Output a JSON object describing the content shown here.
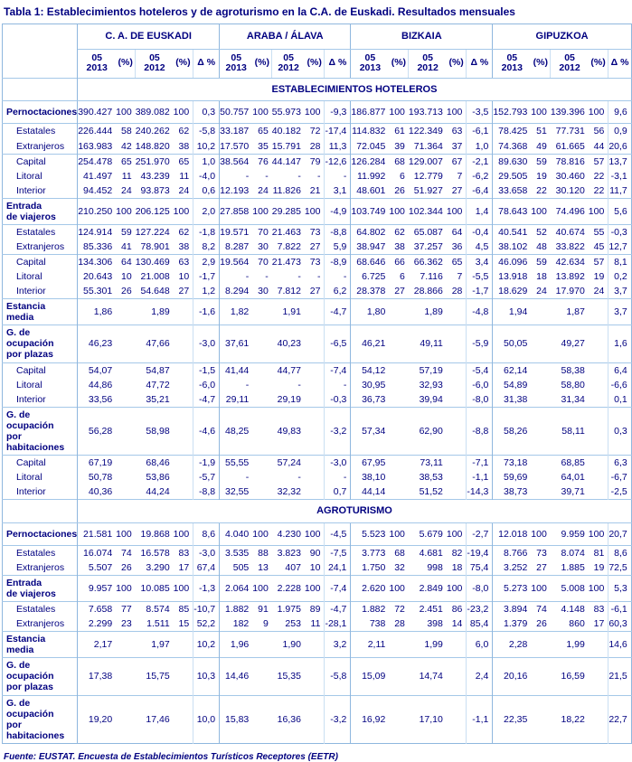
{
  "title": "Tabla 1: Establecimientos hoteleros y de agroturismo en la C.A. de Euskadi. Resultados mensuales",
  "footer": "Fuente: EUSTAT. Encuesta de Establecimientos Turísticos Receptores (EETR)",
  "colors": {
    "text_navy": "#000080",
    "border_strong": "#8fb7de",
    "border_mid": "#a5c8e8",
    "border_light": "#cadff2",
    "background": "#ffffff"
  },
  "table": {
    "groups": [
      "C. A. DE EUSKADI",
      "ARABA / ÁLAVA",
      "BIZKAIA",
      "GIPUZKOA"
    ],
    "subcols": [
      {
        "lines": [
          "05",
          "2013"
        ]
      },
      {
        "label": "(%)"
      },
      {
        "lines": [
          "05",
          "2012"
        ]
      },
      {
        "label": "(%)"
      },
      {
        "label": "Δ %"
      }
    ],
    "sections": [
      {
        "band": "ESTABLECIMIENTOS HOTELEROS",
        "rows": [
          {
            "label": "Pernoctaciones",
            "bold": true,
            "indent": false,
            "sep": false,
            "tall": true,
            "cells": [
              "390.427",
              "100",
              "389.082",
              "100",
              "0,3",
              "50.757",
              "100",
              "55.973",
              "100",
              "-9,3",
              "186.877",
              "100",
              "193.713",
              "100",
              "-3,5",
              "152.793",
              "100",
              "139.396",
              "100",
              "9,6"
            ]
          },
          {
            "label": "Estatales",
            "bold": false,
            "indent": true,
            "sep": true,
            "tall": false,
            "cells": [
              "226.444",
              "58",
              "240.262",
              "62",
              "-5,8",
              "33.187",
              "65",
              "40.182",
              "72",
              "-17,4",
              "114.832",
              "61",
              "122.349",
              "63",
              "-6,1",
              "78.425",
              "51",
              "77.731",
              "56",
              "0,9"
            ]
          },
          {
            "label": "Extranjeros",
            "bold": false,
            "indent": true,
            "sep": false,
            "tall": false,
            "cells": [
              "163.983",
              "42",
              "148.820",
              "38",
              "10,2",
              "17.570",
              "35",
              "15.791",
              "28",
              "11,3",
              "72.045",
              "39",
              "71.364",
              "37",
              "1,0",
              "74.368",
              "49",
              "61.665",
              "44",
              "20,6"
            ]
          },
          {
            "label": "Capital",
            "bold": false,
            "indent": true,
            "sep": true,
            "tall": false,
            "cells": [
              "254.478",
              "65",
              "251.970",
              "65",
              "1,0",
              "38.564",
              "76",
              "44.147",
              "79",
              "-12,6",
              "126.284",
              "68",
              "129.007",
              "67",
              "-2,1",
              "89.630",
              "59",
              "78.816",
              "57",
              "13,7"
            ]
          },
          {
            "label": "Litoral",
            "bold": false,
            "indent": true,
            "sep": false,
            "tall": false,
            "cells": [
              "41.497",
              "11",
              "43.239",
              "11",
              "-4,0",
              "-",
              "-",
              "-",
              "-",
              "-",
              "11.992",
              "6",
              "12.779",
              "7",
              "-6,2",
              "29.505",
              "19",
              "30.460",
              "22",
              "-3,1"
            ]
          },
          {
            "label": "Interior",
            "bold": false,
            "indent": true,
            "sep": false,
            "tall": false,
            "cells": [
              "94.452",
              "24",
              "93.873",
              "24",
              "0,6",
              "12.193",
              "24",
              "11.826",
              "21",
              "3,1",
              "48.601",
              "26",
              "51.927",
              "27",
              "-6,4",
              "33.658",
              "22",
              "30.120",
              "22",
              "11,7"
            ]
          },
          {
            "label": "Entrada\nde viajeros",
            "bold": true,
            "indent": false,
            "sep": true,
            "tall": false,
            "cells": [
              "210.250",
              "100",
              "206.125",
              "100",
              "2,0",
              "27.858",
              "100",
              "29.285",
              "100",
              "-4,9",
              "103.749",
              "100",
              "102.344",
              "100",
              "1,4",
              "78.643",
              "100",
              "74.496",
              "100",
              "5,6"
            ]
          },
          {
            "label": "Estatales",
            "bold": false,
            "indent": true,
            "sep": true,
            "tall": false,
            "cells": [
              "124.914",
              "59",
              "127.224",
              "62",
              "-1,8",
              "19.571",
              "70",
              "21.463",
              "73",
              "-8,8",
              "64.802",
              "62",
              "65.087",
              "64",
              "-0,4",
              "40.541",
              "52",
              "40.674",
              "55",
              "-0,3"
            ]
          },
          {
            "label": "Extranjeros",
            "bold": false,
            "indent": true,
            "sep": false,
            "tall": false,
            "cells": [
              "85.336",
              "41",
              "78.901",
              "38",
              "8,2",
              "8.287",
              "30",
              "7.822",
              "27",
              "5,9",
              "38.947",
              "38",
              "37.257",
              "36",
              "4,5",
              "38.102",
              "48",
              "33.822",
              "45",
              "12,7"
            ]
          },
          {
            "label": "Capital",
            "bold": false,
            "indent": true,
            "sep": true,
            "tall": false,
            "cells": [
              "134.306",
              "64",
              "130.469",
              "63",
              "2,9",
              "19.564",
              "70",
              "21.473",
              "73",
              "-8,9",
              "68.646",
              "66",
              "66.362",
              "65",
              "3,4",
              "46.096",
              "59",
              "42.634",
              "57",
              "8,1"
            ]
          },
          {
            "label": "Litoral",
            "bold": false,
            "indent": true,
            "sep": false,
            "tall": false,
            "cells": [
              "20.643",
              "10",
              "21.008",
              "10",
              "-1,7",
              "-",
              "-",
              "-",
              "-",
              "-",
              "6.725",
              "6",
              "7.116",
              "7",
              "-5,5",
              "13.918",
              "18",
              "13.892",
              "19",
              "0,2"
            ]
          },
          {
            "label": "Interior",
            "bold": false,
            "indent": true,
            "sep": false,
            "tall": false,
            "cells": [
              "55.301",
              "26",
              "54.648",
              "27",
              "1,2",
              "8.294",
              "30",
              "7.812",
              "27",
              "6,2",
              "28.378",
              "27",
              "28.866",
              "28",
              "-1,7",
              "18.629",
              "24",
              "17.970",
              "24",
              "3,7"
            ]
          },
          {
            "label": "Estancia\nmedia",
            "bold": true,
            "indent": false,
            "sep": true,
            "tall": false,
            "cells": [
              "1,86",
              "",
              "1,89",
              "",
              "-1,6",
              "1,82",
              "",
              "1,91",
              "",
              "-4,7",
              "1,80",
              "",
              "1,89",
              "",
              "-4,8",
              "1,94",
              "",
              "1,87",
              "",
              "3,7"
            ]
          },
          {
            "label": "G. de ocupación\npor plazas",
            "bold": true,
            "indent": false,
            "sep": true,
            "tall": false,
            "cells": [
              "46,23",
              "",
              "47,66",
              "",
              "-3,0",
              "37,61",
              "",
              "40,23",
              "",
              "-6,5",
              "46,21",
              "",
              "49,11",
              "",
              "-5,9",
              "50,05",
              "",
              "49,27",
              "",
              "1,6"
            ]
          },
          {
            "label": "Capital",
            "bold": false,
            "indent": true,
            "sep": true,
            "tall": false,
            "cells": [
              "54,07",
              "",
              "54,87",
              "",
              "-1,5",
              "41,44",
              "",
              "44,77",
              "",
              "-7,4",
              "54,12",
              "",
              "57,19",
              "",
              "-5,4",
              "62,14",
              "",
              "58,38",
              "",
              "6,4"
            ]
          },
          {
            "label": "Litoral",
            "bold": false,
            "indent": true,
            "sep": false,
            "tall": false,
            "cells": [
              "44,86",
              "",
              "47,72",
              "",
              "-6,0",
              "-",
              "",
              "-",
              "",
              "-",
              "30,95",
              "",
              "32,93",
              "",
              "-6,0",
              "54,89",
              "",
              "58,80",
              "",
              "-6,6"
            ]
          },
          {
            "label": "Interior",
            "bold": false,
            "indent": true,
            "sep": false,
            "tall": false,
            "cells": [
              "33,56",
              "",
              "35,21",
              "",
              "-4,7",
              "29,11",
              "",
              "29,19",
              "",
              "-0,3",
              "36,73",
              "",
              "39,94",
              "",
              "-8,0",
              "31,38",
              "",
              "31,34",
              "",
              "0,1"
            ]
          },
          {
            "label": "G. de ocupación\npor habitaciones",
            "bold": true,
            "indent": false,
            "sep": true,
            "tall": false,
            "cells": [
              "56,28",
              "",
              "58,98",
              "",
              "-4,6",
              "48,25",
              "",
              "49,83",
              "",
              "-3,2",
              "57,34",
              "",
              "62,90",
              "",
              "-8,8",
              "58,26",
              "",
              "58,11",
              "",
              "0,3"
            ]
          },
          {
            "label": "Capital",
            "bold": false,
            "indent": true,
            "sep": true,
            "tall": false,
            "cells": [
              "67,19",
              "",
              "68,46",
              "",
              "-1,9",
              "55,55",
              "",
              "57,24",
              "",
              "-3,0",
              "67,95",
              "",
              "73,11",
              "",
              "-7,1",
              "73,18",
              "",
              "68,85",
              "",
              "6,3"
            ]
          },
          {
            "label": "Litoral",
            "bold": false,
            "indent": true,
            "sep": false,
            "tall": false,
            "cells": [
              "50,78",
              "",
              "53,86",
              "",
              "-5,7",
              "-",
              "",
              "-",
              "",
              "-",
              "38,10",
              "",
              "38,53",
              "",
              "-1,1",
              "59,69",
              "",
              "64,01",
              "",
              "-6,7"
            ]
          },
          {
            "label": "Interior",
            "bold": false,
            "indent": true,
            "sep": false,
            "tall": false,
            "cells": [
              "40,36",
              "",
              "44,24",
              "",
              "-8,8",
              "32,55",
              "",
              "32,32",
              "",
              "0,7",
              "44,14",
              "",
              "51,52",
              "",
              "-14,3",
              "38,73",
              "",
              "39,71",
              "",
              "-2,5"
            ]
          }
        ]
      },
      {
        "band": "AGROTURISMO",
        "rows": [
          {
            "label": "Pernoctaciones",
            "bold": true,
            "indent": false,
            "sep": false,
            "tall": true,
            "cells": [
              "21.581",
              "100",
              "19.868",
              "100",
              "8,6",
              "4.040",
              "100",
              "4.230",
              "100",
              "-4,5",
              "5.523",
              "100",
              "5.679",
              "100",
              "-2,7",
              "12.018",
              "100",
              "9.959",
              "100",
              "20,7"
            ]
          },
          {
            "label": "Estatales",
            "bold": false,
            "indent": true,
            "sep": true,
            "tall": false,
            "cells": [
              "16.074",
              "74",
              "16.578",
              "83",
              "-3,0",
              "3.535",
              "88",
              "3.823",
              "90",
              "-7,5",
              "3.773",
              "68",
              "4.681",
              "82",
              "-19,4",
              "8.766",
              "73",
              "8.074",
              "81",
              "8,6"
            ]
          },
          {
            "label": "Extranjeros",
            "bold": false,
            "indent": true,
            "sep": false,
            "tall": false,
            "cells": [
              "5.507",
              "26",
              "3.290",
              "17",
              "67,4",
              "505",
              "13",
              "407",
              "10",
              "24,1",
              "1.750",
              "32",
              "998",
              "18",
              "75,4",
              "3.252",
              "27",
              "1.885",
              "19",
              "72,5"
            ]
          },
          {
            "label": "Entrada\nde viajeros",
            "bold": true,
            "indent": false,
            "sep": true,
            "tall": false,
            "cells": [
              "9.957",
              "100",
              "10.085",
              "100",
              "-1,3",
              "2.064",
              "100",
              "2.228",
              "100",
              "-7,4",
              "2.620",
              "100",
              "2.849",
              "100",
              "-8,0",
              "5.273",
              "100",
              "5.008",
              "100",
              "5,3"
            ]
          },
          {
            "label": "Estatales",
            "bold": false,
            "indent": true,
            "sep": true,
            "tall": false,
            "cells": [
              "7.658",
              "77",
              "8.574",
              "85",
              "-10,7",
              "1.882",
              "91",
              "1.975",
              "89",
              "-4,7",
              "1.882",
              "72",
              "2.451",
              "86",
              "-23,2",
              "3.894",
              "74",
              "4.148",
              "83",
              "-6,1"
            ]
          },
          {
            "label": "Extranjeros",
            "bold": false,
            "indent": true,
            "sep": false,
            "tall": false,
            "cells": [
              "2.299",
              "23",
              "1.511",
              "15",
              "52,2",
              "182",
              "9",
              "253",
              "11",
              "-28,1",
              "738",
              "28",
              "398",
              "14",
              "85,4",
              "1.379",
              "26",
              "860",
              "17",
              "60,3"
            ]
          },
          {
            "label": "Estancia\nmedia",
            "bold": true,
            "indent": false,
            "sep": true,
            "tall": false,
            "cells": [
              "2,17",
              "",
              "1,97",
              "",
              "10,2",
              "1,96",
              "",
              "1,90",
              "",
              "3,2",
              "2,11",
              "",
              "1,99",
              "",
              "6,0",
              "2,28",
              "",
              "1,99",
              "",
              "14,6"
            ]
          },
          {
            "label": "G. de ocupación\npor plazas",
            "bold": true,
            "indent": false,
            "sep": true,
            "tall": false,
            "cells": [
              "17,38",
              "",
              "15,75",
              "",
              "10,3",
              "14,46",
              "",
              "15,35",
              "",
              "-5,8",
              "15,09",
              "",
              "14,74",
              "",
              "2,4",
              "20,16",
              "",
              "16,59",
              "",
              "21,5"
            ]
          },
          {
            "label": "G. de ocupación\npor habitaciones",
            "bold": true,
            "indent": false,
            "sep": true,
            "tall": false,
            "cells": [
              "19,20",
              "",
              "17,46",
              "",
              "10,0",
              "15,83",
              "",
              "16,36",
              "",
              "-3,2",
              "16,92",
              "",
              "17,10",
              "",
              "-1,1",
              "22,35",
              "",
              "18,22",
              "",
              "22,7"
            ]
          }
        ]
      }
    ]
  }
}
